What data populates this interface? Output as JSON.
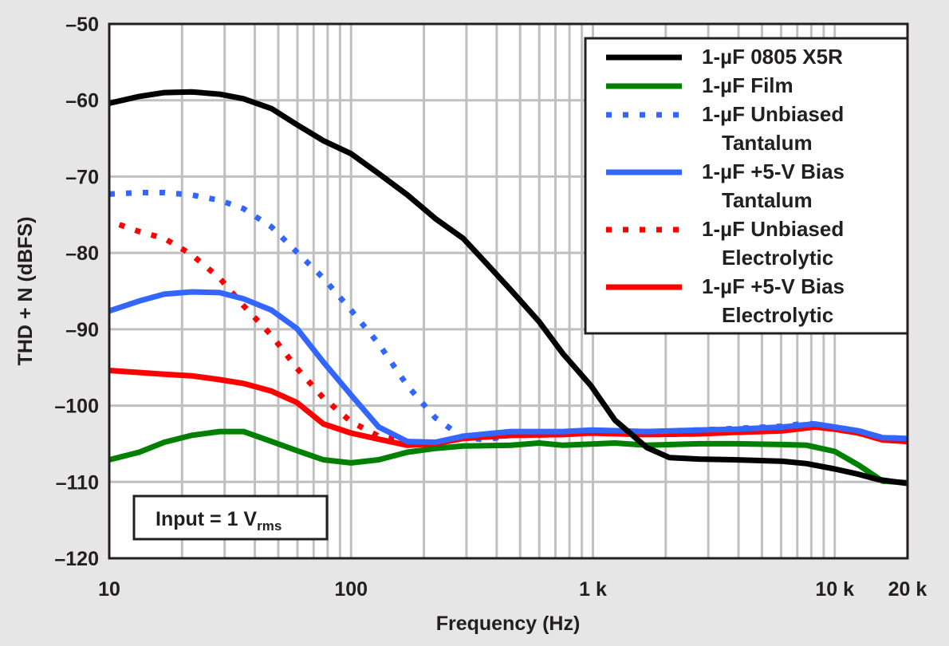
{
  "chart_data": {
    "type": "line",
    "xlabel": "Frequency (Hz)",
    "ylabel": "THD + N (dBFS)",
    "x_scale": "log",
    "xlim": [
      10,
      20000
    ],
    "ylim": [
      -120,
      -50
    ],
    "x_ticks": [
      {
        "value": 10,
        "label": "10"
      },
      {
        "value": 100,
        "label": "100"
      },
      {
        "value": 1000,
        "label": "1 k"
      },
      {
        "value": 10000,
        "label": "10 k"
      },
      {
        "value": 20000,
        "label": "20 k"
      }
    ],
    "y_ticks": [
      {
        "value": -50,
        "label": "–50"
      },
      {
        "value": -60,
        "label": "–60"
      },
      {
        "value": -70,
        "label": "–70"
      },
      {
        "value": -80,
        "label": "–80"
      },
      {
        "value": -90,
        "label": "–90"
      },
      {
        "value": -100,
        "label": "–100"
      },
      {
        "value": -110,
        "label": "–110"
      },
      {
        "value": -120,
        "label": "–120"
      }
    ],
    "grid": true,
    "legend_position": "top-right",
    "annotation": {
      "text": "Input = 1 V",
      "subscript": "rms"
    },
    "series": [
      {
        "name": "1-µF 0805 X5R",
        "legend_lines": [
          "1-µF 0805 X5R"
        ],
        "color": "#000000",
        "style": "solid",
        "x": [
          10,
          13.3,
          16.9,
          21.9,
          28.6,
          35.9,
          46.9,
          59.7,
          76.8,
          100,
          130,
          171,
          223,
          291,
          366,
          459,
          599,
          752,
          982,
          1233,
          1671,
          2070,
          2742,
          3862,
          6097,
          7661,
          10000,
          12560,
          15180,
          20000
        ],
        "y": [
          -60.4,
          -59.5,
          -59,
          -58.9,
          -59.2,
          -59.8,
          -61.1,
          -63.2,
          -65.3,
          -67,
          -69.6,
          -72.4,
          -75.5,
          -78.1,
          -81.5,
          -84.9,
          -89,
          -93.2,
          -97.4,
          -101.9,
          -105.5,
          -106.8,
          -107,
          -107.1,
          -107.3,
          -107.6,
          -108.3,
          -109,
          -109.7,
          -110.2
        ]
      },
      {
        "name": "1-µF Film",
        "legend_lines": [
          "1-µF Film"
        ],
        "color": "#008000",
        "style": "solid",
        "x": [
          10,
          13.3,
          16.9,
          21.9,
          28.6,
          35.9,
          46.9,
          59.7,
          76.8,
          100,
          130,
          171,
          223,
          291,
          459,
          599,
          752,
          1233,
          1671,
          2742,
          3862,
          6097,
          7661,
          10000,
          12560,
          15770,
          20000
        ],
        "y": [
          -107.1,
          -106.1,
          -104.8,
          -103.9,
          -103.4,
          -103.4,
          -104.7,
          -105.9,
          -107.1,
          -107.5,
          -107.1,
          -106.1,
          -105.6,
          -105.3,
          -105.2,
          -104.9,
          -105.2,
          -104.9,
          -105.2,
          -105,
          -105,
          -105.1,
          -105.2,
          -106,
          -107.8,
          -109.9,
          -110.1
        ]
      },
      {
        "name": "1-µF Unbiased Tantalum",
        "legend_lines": [
          "1-µF Unbiased",
          "Tantalum"
        ],
        "color": "#3366ff",
        "style": "dotted",
        "x": [
          10,
          13.3,
          16.9,
          21.9,
          28.6,
          35.9,
          46.9,
          59.7,
          76.8,
          100,
          130,
          171,
          223,
          291,
          366,
          459,
          752,
          982,
          1671,
          2742,
          3862,
          6097,
          7661,
          10000,
          12560,
          15770,
          20000
        ],
        "y": [
          -72.3,
          -72.1,
          -72.1,
          -72.4,
          -73.1,
          -74.2,
          -76.6,
          -79.9,
          -83.3,
          -87.5,
          -91.9,
          -97.4,
          -101.6,
          -104.2,
          -104.5,
          -103.8,
          -103.8,
          -103.4,
          -103.4,
          -103.2,
          -103,
          -102.7,
          -102.3,
          -102.8,
          -103.3,
          -104.2,
          -104.3
        ]
      },
      {
        "name": "1-µF +5-V Bias Tantalum",
        "legend_lines": [
          "1-µF +5-V Bias",
          "Tantalum"
        ],
        "color": "#3366ff",
        "style": "solid",
        "x": [
          10,
          13.3,
          16.9,
          21.9,
          28.6,
          35.9,
          46.9,
          59.7,
          76.8,
          100,
          130,
          171,
          223,
          291,
          459,
          752,
          982,
          1671,
          2742,
          3862,
          6097,
          8260,
          10000,
          12560,
          15770,
          20000
        ],
        "y": [
          -87.6,
          -86.3,
          -85.4,
          -85.1,
          -85.2,
          -86,
          -87.5,
          -89.9,
          -94.3,
          -98.6,
          -102.8,
          -104.7,
          -104.8,
          -104,
          -103.4,
          -103.4,
          -103.2,
          -103.4,
          -103.2,
          -103.1,
          -102.8,
          -102.4,
          -102.8,
          -103.3,
          -104.2,
          -104.3
        ]
      },
      {
        "name": "1-µF Unbiased Electrolytic",
        "legend_lines": [
          "1-µF Unbiased",
          "Electrolytic"
        ],
        "color": "#ff0000",
        "style": "dotted",
        "x": [
          11,
          13.3,
          16.9,
          21.9,
          28.6,
          35.9,
          46.9,
          59.7,
          76.8,
          100,
          130,
          171,
          223,
          291,
          459,
          752,
          982,
          1671,
          2742,
          3862,
          6097,
          8260,
          10000,
          12560,
          15770,
          20000
        ],
        "y": [
          -76.3,
          -77.2,
          -78.1,
          -80.2,
          -83.3,
          -86.9,
          -90.8,
          -95.1,
          -99,
          -102.1,
          -104,
          -104.7,
          -104.9,
          -104.3,
          -103.9,
          -103.8,
          -103.6,
          -103.8,
          -103.7,
          -103.5,
          -103.3,
          -102.8,
          -103.1,
          -103.6,
          -104.5,
          -104.7
        ]
      },
      {
        "name": "1-µF +5-V Bias Electrolytic",
        "legend_lines": [
          "1-µF +5-V Bias",
          "Electrolytic"
        ],
        "color": "#ff0000",
        "style": "solid",
        "x": [
          10,
          16.9,
          21.9,
          28.6,
          35.9,
          46.9,
          59.7,
          76.8,
          100,
          130,
          171,
          223,
          291,
          459,
          752,
          982,
          1671,
          2742,
          3862,
          6097,
          8260,
          10000,
          12560,
          15770,
          20000
        ],
        "y": [
          -95.4,
          -95.9,
          -96.1,
          -96.6,
          -97.1,
          -98.1,
          -99.6,
          -102.4,
          -103.6,
          -104.4,
          -105.2,
          -105,
          -104.3,
          -103.9,
          -103.8,
          -103.6,
          -103.8,
          -103.7,
          -103.5,
          -103.3,
          -102.8,
          -103.1,
          -103.6,
          -104.5,
          -104.7
        ]
      }
    ]
  }
}
